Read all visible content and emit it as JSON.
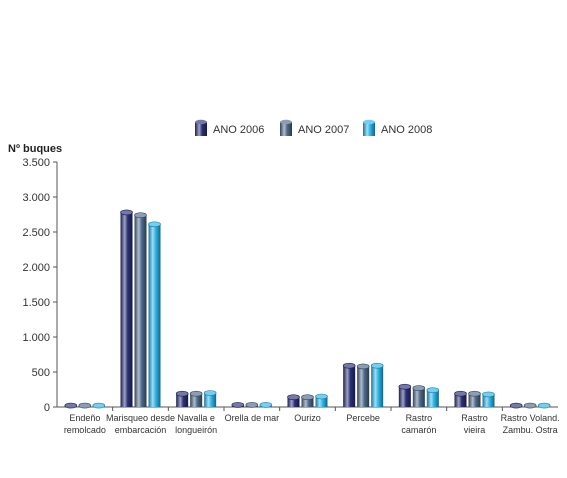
{
  "chart_data": {
    "type": "bar",
    "ylabel": "Nº buques",
    "ylim": [
      0,
      3500
    ],
    "yticks": [
      0,
      500,
      1000,
      1500,
      2000,
      2500,
      3000,
      3500
    ],
    "ytick_labels": [
      "0",
      "500",
      "1.000",
      "1.500",
      "2.000",
      "2.500",
      "3.000",
      "3.500"
    ],
    "legend_position": "top-center",
    "grid": false,
    "categories": [
      [
        "Endeño",
        "remolcado"
      ],
      [
        "Marisqueo desde",
        "embarcación"
      ],
      [
        "Navalla e",
        "longueirón"
      ],
      [
        "Orella de mar"
      ],
      [
        "Ourizo"
      ],
      [
        "Percebe"
      ],
      [
        "Rastro",
        "camarón"
      ],
      [
        "Rastro",
        "vieira"
      ],
      [
        "Rastro Voland.",
        "Zambu. Ostra"
      ]
    ],
    "series": [
      {
        "name": "ANO 2006",
        "color": "#2a3078",
        "values": [
          20,
          2780,
          190,
          30,
          140,
          590,
          290,
          190,
          20
        ]
      },
      {
        "name": "ANO 2007",
        "color": "#4d6a8a",
        "values": [
          20,
          2740,
          190,
          30,
          140,
          580,
          270,
          190,
          20
        ]
      },
      {
        "name": "ANO 2008",
        "color": "#2ab4e8",
        "values": [
          20,
          2610,
          200,
          30,
          150,
          590,
          240,
          180,
          20
        ]
      }
    ]
  }
}
